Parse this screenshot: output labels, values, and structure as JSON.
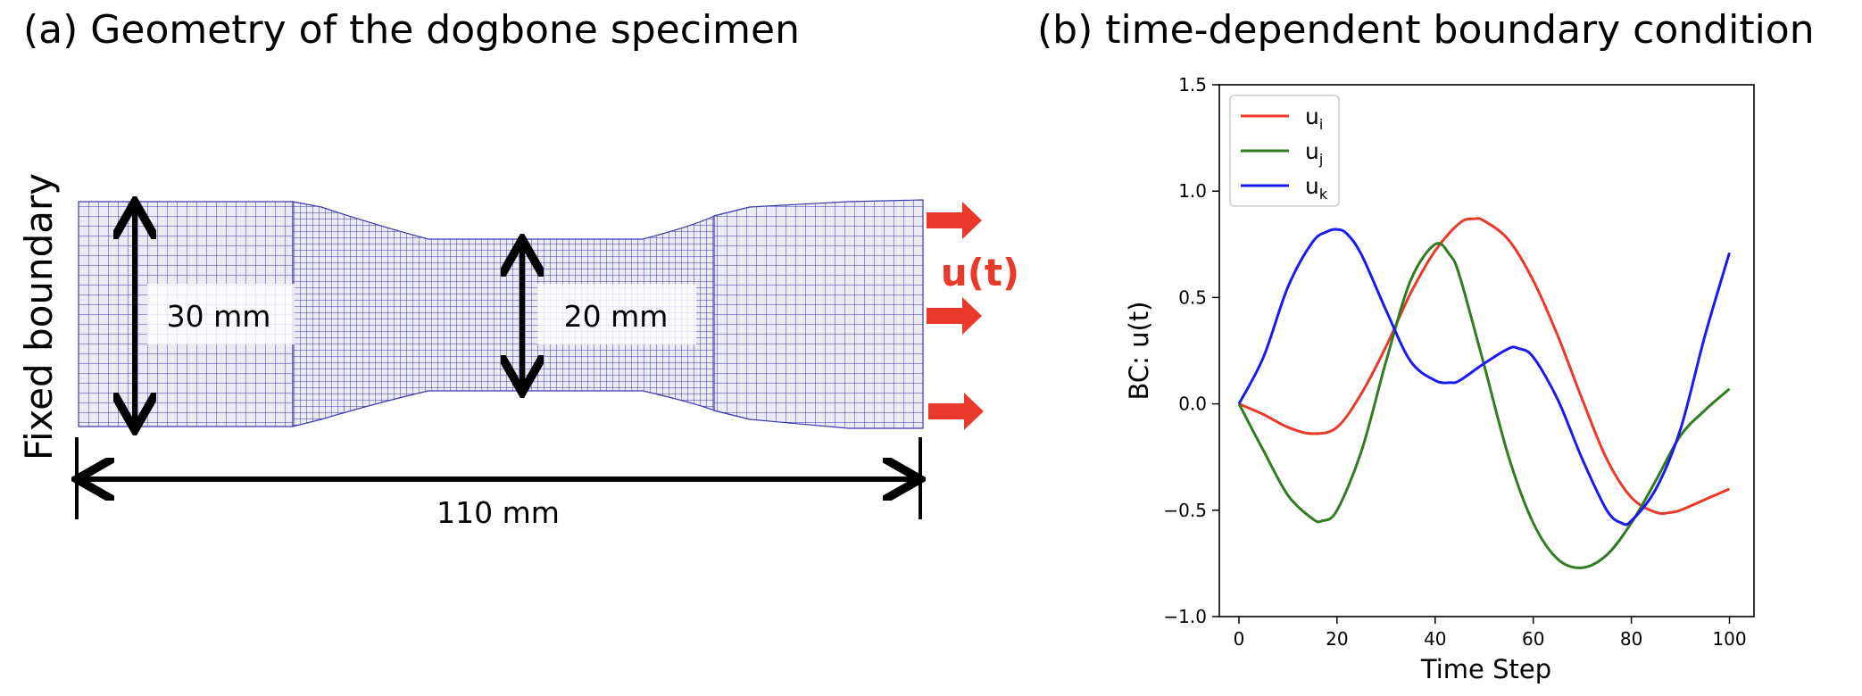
{
  "panel_a": {
    "title": "(a) Geometry of the dogbone specimen",
    "fixed_label": "Fixed boundary",
    "load_label": "u(t)",
    "dim_left": "30 mm",
    "dim_center": "20 mm",
    "dim_length": "110 mm",
    "mesh_color": "#3b3bb0",
    "arrow_color": "#e8392a"
  },
  "panel_b": {
    "title": "(b) time-dependent boundary condition"
  },
  "chart_data": {
    "type": "line",
    "title": "(b) time-dependent boundary condition",
    "xlabel": "Time Step",
    "ylabel": "BC: u(t)",
    "xlim": [
      -4,
      105
    ],
    "ylim": [
      -1.0,
      1.5
    ],
    "xticks": [
      0,
      20,
      40,
      60,
      80,
      100
    ],
    "yticks": [
      -1.0,
      -0.5,
      0.0,
      0.5,
      1.0,
      1.5
    ],
    "xtick_labels": [
      "0",
      "20",
      "40",
      "60",
      "80",
      "100"
    ],
    "ytick_labels": [
      "−1.0",
      "−0.5",
      "0.0",
      "0.5",
      "1.0",
      "1.5"
    ],
    "legend_position": "top-left",
    "series": [
      {
        "name": "u",
        "sub": "i",
        "color": "#e8392a",
        "x": [
          0,
          5,
          10,
          15,
          20,
          25,
          30,
          35,
          40,
          45,
          48,
          50,
          55,
          60,
          65,
          70,
          75,
          80,
          85,
          88,
          90,
          95,
          100
        ],
        "y": [
          0,
          -0.05,
          -0.11,
          -0.14,
          -0.11,
          0.05,
          0.27,
          0.52,
          0.72,
          0.85,
          0.87,
          0.86,
          0.77,
          0.58,
          0.32,
          0.02,
          -0.26,
          -0.44,
          -0.51,
          -0.51,
          -0.5,
          -0.45,
          -0.4
        ]
      },
      {
        "name": "u",
        "sub": "j",
        "color": "#2e7d1e",
        "x": [
          0,
          5,
          10,
          15,
          17,
          20,
          25,
          30,
          35,
          40,
          43,
          45,
          50,
          55,
          60,
          65,
          70,
          75,
          80,
          85,
          90,
          95,
          100
        ],
        "y": [
          0,
          -0.22,
          -0.43,
          -0.54,
          -0.55,
          -0.5,
          -0.22,
          0.2,
          0.58,
          0.75,
          0.7,
          0.6,
          0.18,
          -0.25,
          -0.56,
          -0.73,
          -0.77,
          -0.71,
          -0.56,
          -0.36,
          -0.15,
          -0.03,
          0.07
        ]
      },
      {
        "name": "u",
        "sub": "k",
        "color": "#1a1aeb",
        "x": [
          0,
          5,
          10,
          15,
          18,
          20,
          22,
          25,
          30,
          35,
          40,
          43,
          45,
          50,
          55,
          57,
          60,
          65,
          70,
          75,
          78,
          80,
          85,
          90,
          95,
          100
        ],
        "y": [
          0,
          0.22,
          0.55,
          0.76,
          0.81,
          0.82,
          0.8,
          0.7,
          0.44,
          0.2,
          0.11,
          0.1,
          0.11,
          0.19,
          0.26,
          0.26,
          0.22,
          0.02,
          -0.26,
          -0.5,
          -0.56,
          -0.55,
          -0.4,
          -0.12,
          0.32,
          0.71
        ]
      }
    ]
  }
}
